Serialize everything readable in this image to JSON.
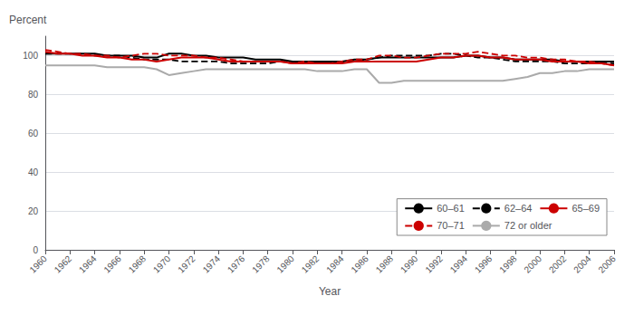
{
  "chart_data": {
    "type": "line",
    "x": [
      1960,
      1961,
      1962,
      1963,
      1964,
      1965,
      1966,
      1967,
      1968,
      1969,
      1970,
      1971,
      1972,
      1973,
      1974,
      1975,
      1976,
      1977,
      1978,
      1979,
      1980,
      1981,
      1982,
      1983,
      1984,
      1985,
      1986,
      1987,
      1988,
      1989,
      1990,
      1991,
      1992,
      1993,
      1994,
      1995,
      1996,
      1997,
      1998,
      1999,
      2000,
      2001,
      2002,
      2003,
      2004,
      2005,
      2006
    ],
    "series": [
      {
        "name": "60–61",
        "color": "#000000",
        "line_style": "solid",
        "values": [
          101,
          101,
          101,
          101,
          101,
          100,
          100,
          100,
          99,
          99,
          101,
          101,
          100,
          100,
          99,
          99,
          99,
          98,
          98,
          98,
          97,
          97,
          97,
          97,
          97,
          98,
          98,
          99,
          99,
          99,
          99,
          99,
          99,
          99,
          100,
          100,
          99,
          99,
          98,
          98,
          98,
          98,
          97,
          97,
          97,
          97,
          97
        ]
      },
      {
        "name": "62–64",
        "color": "#000000",
        "line_style": "dashed",
        "values": [
          101,
          101,
          101,
          101,
          100,
          100,
          100,
          99,
          98,
          98,
          98,
          97,
          97,
          97,
          97,
          96,
          96,
          96,
          96,
          97,
          97,
          97,
          97,
          97,
          97,
          97,
          98,
          99,
          100,
          100,
          100,
          100,
          101,
          101,
          100,
          99,
          99,
          98,
          97,
          97,
          97,
          97,
          96,
          96,
          96,
          96,
          96
        ]
      },
      {
        "name": "65–69",
        "color": "#cc0000",
        "line_style": "solid",
        "values": [
          102,
          101,
          101,
          100,
          100,
          99,
          99,
          98,
          98,
          97,
          98,
          99,
          99,
          99,
          98,
          97,
          97,
          97,
          97,
          97,
          96,
          96,
          96,
          96,
          96,
          97,
          97,
          97,
          97,
          97,
          97,
          98,
          99,
          99,
          100,
          100,
          99,
          99,
          98,
          98,
          98,
          97,
          97,
          97,
          96,
          96,
          95
        ]
      },
      {
        "name": "70–71",
        "color": "#cc0000",
        "line_style": "dashed",
        "values": [
          103,
          102,
          101,
          101,
          100,
          100,
          99,
          100,
          101,
          101,
          100,
          100,
          100,
          99,
          99,
          98,
          97,
          97,
          97,
          97,
          96,
          97,
          96,
          96,
          97,
          98,
          98,
          100,
          100,
          99,
          99,
          100,
          101,
          101,
          101,
          102,
          101,
          100,
          100,
          99,
          99,
          98,
          98,
          97,
          97,
          96,
          95
        ]
      },
      {
        "name": "72 or older",
        "color": "#aaaaaa",
        "line_style": "solid",
        "values": [
          95,
          95,
          95,
          95,
          95,
          94,
          94,
          94,
          94,
          93,
          90,
          91,
          92,
          93,
          93,
          93,
          93,
          93,
          93,
          93,
          93,
          93,
          92,
          92,
          92,
          93,
          93,
          86,
          86,
          87,
          87,
          87,
          87,
          87,
          87,
          87,
          87,
          87,
          88,
          89,
          91,
          91,
          92,
          92,
          93,
          93,
          93
        ]
      }
    ],
    "xlabel": "Year",
    "ylabel": "Percent",
    "xlim": [
      1960,
      2006
    ],
    "xticks": [
      1960,
      1962,
      1964,
      1966,
      1968,
      1970,
      1972,
      1974,
      1976,
      1978,
      1980,
      1982,
      1984,
      1986,
      1988,
      1990,
      1992,
      1994,
      1996,
      1998,
      2000,
      2002,
      2004,
      2006
    ],
    "ylim": [
      0,
      110
    ],
    "yticks": [
      0,
      20,
      40,
      60,
      80,
      100
    ],
    "grid": true,
    "legend": "lower right"
  }
}
